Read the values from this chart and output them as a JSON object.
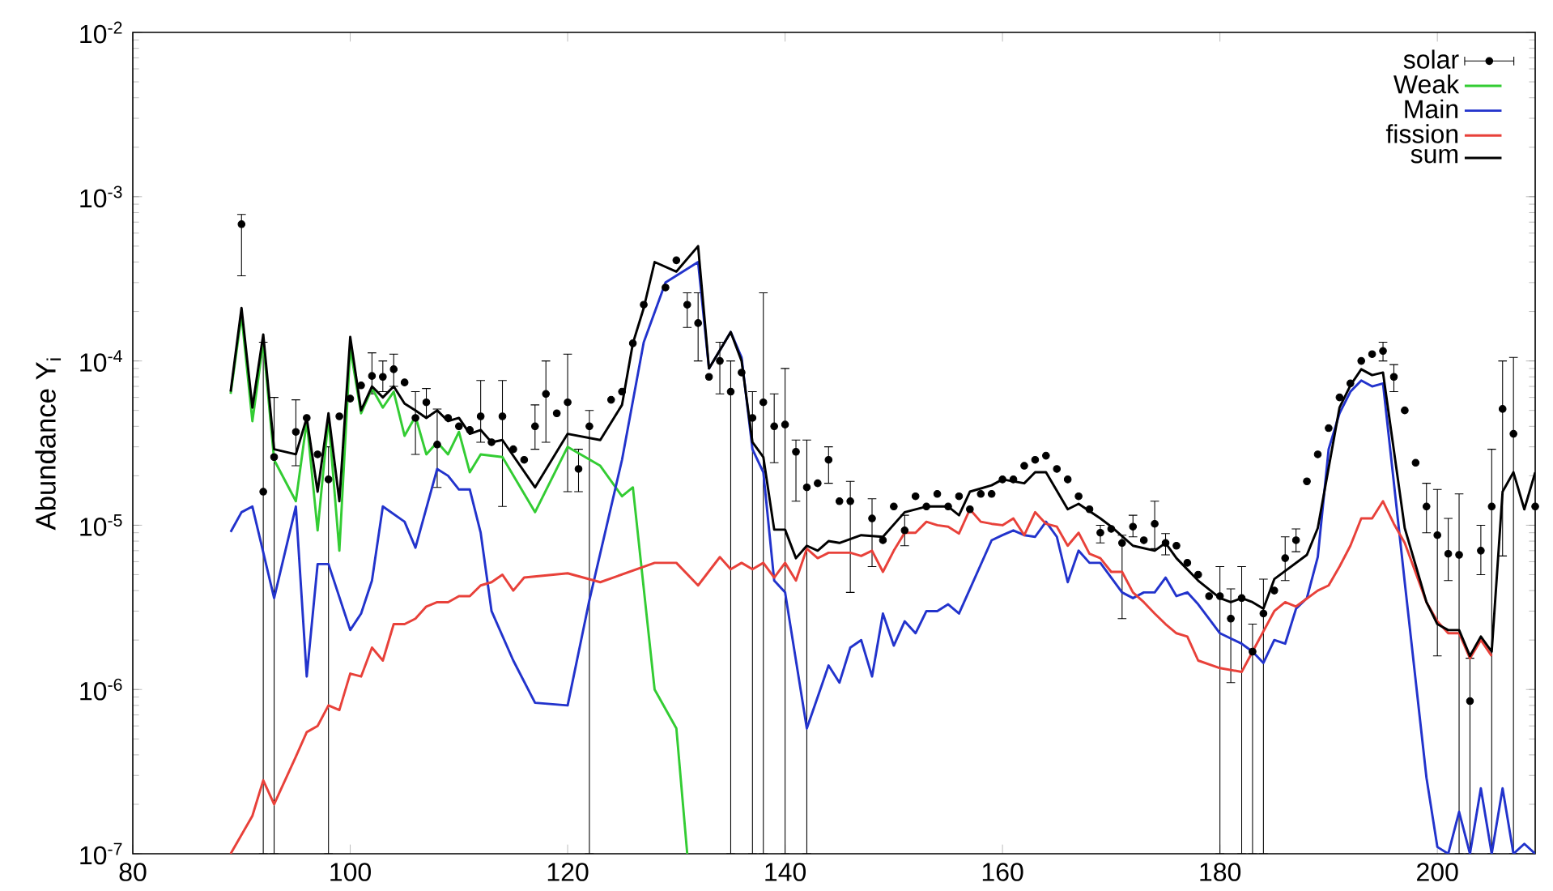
{
  "chart_data": {
    "type": "line",
    "ylabel": "Abundance Y$_{i}$",
    "log": "y",
    "legend": "top right",
    "xlim": [
      80,
      209
    ],
    "xticks": [
      80,
      100,
      120,
      140,
      160,
      180,
      200
    ],
    "ylim": [
      1e-07,
      0.01
    ],
    "yticks": [
      {
        "value": 1e-07,
        "label": "10$^{-7}$"
      },
      {
        "value": 1e-06,
        "label": "10$^{-6}$"
      },
      {
        "value": 1e-05,
        "label": "10$^{-5}$"
      },
      {
        "value": 0.0001,
        "label": "10$^{-4}$"
      },
      {
        "value": 0.001,
        "label": "10$^{-3}$"
      },
      {
        "value": 0.01,
        "label": "10$^{-2}$"
      }
    ],
    "series": [
      {
        "name": "solar",
        "type": "scatter",
        "marker": "circle",
        "color": "#000000",
        "x": [
          90,
          92,
          93,
          95,
          96,
          97,
          98,
          99,
          100,
          101,
          102,
          103,
          104,
          105,
          106,
          107,
          108,
          109,
          110,
          111,
          112,
          113,
          114,
          115,
          116,
          117,
          118,
          119,
          120,
          121,
          122,
          124,
          125,
          126,
          127,
          129,
          130,
          131,
          132,
          133,
          134,
          135,
          136,
          137,
          138,
          139,
          140,
          141,
          142,
          143,
          144,
          145,
          146,
          148,
          149,
          150,
          151,
          152,
          153,
          154,
          155,
          156,
          157,
          158,
          159,
          160,
          161,
          162,
          163,
          164,
          165,
          166,
          167,
          168,
          169,
          170,
          171,
          172,
          173,
          174,
          175,
          176,
          177,
          178,
          179,
          180,
          181,
          182,
          183,
          184,
          185,
          186,
          187,
          188,
          189,
          190,
          191,
          192,
          193,
          194,
          195,
          196,
          197,
          198,
          199,
          200,
          201,
          202,
          203,
          204,
          205,
          206,
          207,
          209
        ],
        "values": [
          0.00068,
          1.6e-05,
          2.6e-05,
          3.7e-05,
          4.5e-05,
          2.7e-05,
          1.9e-05,
          4.6e-05,
          5.9e-05,
          7.1e-05,
          8.1e-05,
          8e-05,
          8.9e-05,
          7.4e-05,
          4.5e-05,
          5.6e-05,
          3.1e-05,
          4.5e-05,
          4e-05,
          3.8e-05,
          4.6e-05,
          3.2e-05,
          4.6e-05,
          2.9e-05,
          2.5e-05,
          4e-05,
          6.3e-05,
          4.8e-05,
          5.6e-05,
          2.2e-05,
          4e-05,
          5.8e-05,
          6.5e-05,
          0.000128,
          0.00022,
          0.00028,
          0.00041,
          0.00022,
          0.00017,
          8e-05,
          0.0001,
          6.5e-05,
          8.5e-05,
          4.5e-05,
          5.6e-05,
          4e-05,
          4.1e-05,
          2.8e-05,
          1.7e-05,
          1.8e-05,
          2.5e-05,
          1.4e-05,
          1.4e-05,
          1.1e-05,
          8.1e-06,
          1.3e-05,
          9.3e-06,
          1.5e-05,
          1.3e-05,
          1.55e-05,
          1.3e-05,
          1.5e-05,
          1.25e-05,
          1.55e-05,
          1.55e-05,
          1.9e-05,
          1.9e-05,
          2.3e-05,
          2.5e-05,
          2.65e-05,
          2.2e-05,
          1.9e-05,
          1.5e-05,
          1.25e-05,
          9e-06,
          9.5e-06,
          7.8e-06,
          9.8e-06,
          8.1e-06,
          1.02e-05,
          7.8e-06,
          7.5e-06,
          5.9e-06,
          5e-06,
          3.7e-06,
          3.7e-06,
          2.7e-06,
          3.6e-06,
          1.7e-06,
          2.9e-06,
          4e-06,
          6.3e-06,
          8.1e-06,
          1.85e-05,
          2.7e-05,
          3.9e-05,
          6e-05,
          7.3e-05,
          0.0001,
          0.00011,
          0.000115,
          8e-05,
          5e-05,
          2.4e-05,
          1.3e-05,
          8.7e-06,
          6.7e-06,
          6.6e-06,
          8.5e-07,
          7e-06,
          1.3e-05,
          5.1e-05,
          3.6e-05,
          1.3e-05
        ],
        "errors": [
          [
            0.00033,
            0.00078
          ],
          [
            1e-07,
            0.00013
          ],
          [
            1e-07,
            6e-05
          ],
          [
            2.3e-05,
            5.8e-05
          ],
          null,
          null,
          [
            1e-07,
            3e-05
          ],
          null,
          null,
          null,
          [
            6.3e-05,
            0.000112
          ],
          [
            6.5e-05,
            0.0001
          ],
          [
            7e-05,
            0.00011
          ],
          null,
          [
            2.7e-05,
            6.5e-05
          ],
          [
            4.6e-05,
            6.8e-05
          ],
          [
            1.7e-05,
            5.1e-05
          ],
          null,
          null,
          null,
          [
            3.2e-05,
            7.6e-05
          ],
          null,
          [
            1.3e-05,
            7.6e-05
          ],
          null,
          null,
          [
            2.9e-05,
            5.4e-05
          ],
          [
            3.2e-05,
            0.0001
          ],
          null,
          [
            1.6e-05,
            0.00011
          ],
          [
            1.6e-05,
            2.9e-05
          ],
          [
            1e-07,
            5e-05
          ],
          null,
          null,
          null,
          null,
          null,
          null,
          [
            0.00016,
            0.00026
          ],
          [
            0.0001,
            0.00026
          ],
          null,
          [
            6.3e-05,
            0.00013
          ],
          [
            1e-07,
            0.0001
          ],
          null,
          [
            1e-07,
            6.5e-05
          ],
          [
            1e-07,
            0.00026
          ],
          [
            2.4e-05,
            6.3e-05
          ],
          [
            1e-07,
            9e-05
          ],
          [
            1.4e-05,
            3.3e-05
          ],
          [
            1e-07,
            3.3e-05
          ],
          null,
          [
            1.8e-05,
            3e-05
          ],
          null,
          [
            3.9e-06,
            1.85e-05
          ],
          [
            5.6e-06,
            1.45e-05
          ],
          null,
          null,
          [
            7.5e-06,
            1.15e-05
          ],
          null,
          null,
          null,
          null,
          null,
          null,
          null,
          null,
          null,
          null,
          null,
          null,
          null,
          null,
          null,
          null,
          null,
          [
            7.8e-06,
            1e-05
          ],
          null,
          [
            2.7e-06,
            8.7e-06
          ],
          [
            8.5e-06,
            1.15e-05
          ],
          null,
          [
            7.2e-06,
            1.4e-05
          ],
          [
            6.6e-06,
            8.9e-06
          ],
          null,
          null,
          null,
          null,
          [
            1e-07,
            5.6e-06
          ],
          [
            1.1e-06,
            4.1e-06
          ],
          [
            1e-07,
            5.6e-06
          ],
          [
            1e-07,
            2.5e-06
          ],
          [
            1e-07,
            4.7e-06
          ],
          null,
          [
            4.6e-06,
            8.5e-06
          ],
          [
            6.9e-06,
            9.5e-06
          ],
          null,
          null,
          null,
          null,
          null,
          null,
          null,
          [
            0.0001,
            0.00013
          ],
          [
            6.5e-05,
            9.5e-05
          ],
          null,
          null,
          [
            9e-06,
            1.8e-05
          ],
          [
            1.6e-06,
            1.65e-05
          ],
          [
            4.6e-06,
            1.1e-05
          ],
          [
            1e-07,
            1.55e-05
          ],
          [
            1e-07,
            1.55e-06
          ],
          [
            5e-06,
            1e-05
          ],
          [
            1e-07,
            2.9e-05
          ],
          [
            6.5e-06,
            0.0001
          ],
          [
            1e-07,
            0.000105
          ],
          null
        ]
      },
      {
        "name": "Weak",
        "color": "#33cc33",
        "x": [
          89,
          90,
          91,
          92,
          93,
          95,
          96,
          97,
          98,
          99,
          100,
          101,
          102,
          103,
          104,
          105,
          106,
          107,
          108,
          109,
          110,
          111,
          112,
          114,
          117,
          120,
          123,
          125,
          126,
          128,
          130,
          131
        ],
        "values": [
          6.3e-05,
          0.00019,
          4.3e-05,
          0.00013,
          2.5e-05,
          1.4e-05,
          4.3e-05,
          9.3e-06,
          4.5e-05,
          7e-06,
          0.00012,
          4.8e-05,
          6.8e-05,
          5.2e-05,
          6.5e-05,
          3.5e-05,
          4.6e-05,
          2.7e-05,
          3.2e-05,
          2.7e-05,
          3.7e-05,
          2.1e-05,
          2.7e-05,
          2.6e-05,
          1.2e-05,
          3e-05,
          2.3e-05,
          1.5e-05,
          1.7e-05,
          1e-06,
          5.8e-07,
          1e-07
        ]
      },
      {
        "name": "Main",
        "color": "#2233cc",
        "x": [
          89,
          90,
          91,
          93,
          95,
          96,
          97,
          98,
          100,
          101,
          102,
          103,
          105,
          106,
          108,
          109,
          110,
          111,
          112,
          113,
          115,
          117,
          120,
          122,
          125,
          127,
          129,
          132,
          133,
          135,
          136,
          137,
          138,
          139,
          140,
          142,
          144,
          145,
          146,
          147,
          148,
          149,
          150,
          151,
          152,
          153,
          154,
          155,
          156,
          159,
          160,
          161,
          162,
          163,
          164,
          165,
          166,
          167,
          168,
          169,
          171,
          172,
          173,
          174,
          175,
          176,
          177,
          178,
          180,
          182,
          183,
          184,
          185,
          186,
          187,
          188,
          189,
          190,
          191,
          192,
          193,
          194,
          195,
          197,
          199,
          200,
          201,
          202,
          203,
          204,
          205,
          206,
          207,
          208,
          209
        ],
        "values": [
          9.1e-06,
          1.2e-05,
          1.3e-05,
          3.6e-06,
          1.3e-05,
          1.2e-06,
          5.8e-06,
          5.8e-06,
          2.3e-06,
          2.9e-06,
          4.6e-06,
          1.3e-05,
          1.05e-05,
          7.3e-06,
          2.2e-05,
          2e-05,
          1.65e-05,
          1.65e-05,
          9e-06,
          3e-06,
          1.5e-06,
          8.3e-07,
          8e-07,
          3.5e-06,
          2.5e-05,
          0.00013,
          0.0003,
          0.0004,
          9e-05,
          0.00015,
          0.000105,
          2.9e-05,
          2.1e-05,
          4.6e-06,
          3.9e-06,
          5.8e-07,
          1.4e-06,
          1.1e-06,
          1.8e-06,
          2e-06,
          1.2e-06,
          2.9e-06,
          1.85e-06,
          2.6e-06,
          2.2e-06,
          3e-06,
          3e-06,
          3.3e-06,
          2.9e-06,
          8.1e-06,
          8.7e-06,
          9.3e-06,
          8.7e-06,
          8.5e-06,
          1.05e-05,
          8.5e-06,
          4.5e-06,
          7e-06,
          5.9e-06,
          5.9e-06,
          3.9e-06,
          3.6e-06,
          3.9e-06,
          3.9e-06,
          4.8e-06,
          3.7e-06,
          3.9e-06,
          3.3e-06,
          2.2e-06,
          1.9e-06,
          1.7e-06,
          1.45e-06,
          2e-06,
          1.9e-06,
          3.1e-06,
          3.6e-06,
          6.4e-06,
          2.9e-05,
          4.8e-05,
          6.5e-05,
          7.6e-05,
          7e-05,
          7.3e-05,
          4.5e-06,
          2.9e-07,
          1.1e-07,
          1e-07,
          1.8e-07,
          1e-07,
          2.5e-07,
          1e-07,
          2.5e-07,
          1e-07,
          1.15e-07,
          1e-07
        ]
      },
      {
        "name": "fission",
        "color": "#e8413a",
        "x": [
          89,
          91,
          92,
          93,
          95,
          96,
          97,
          98,
          99,
          100,
          101,
          102,
          103,
          104,
          105,
          106,
          107,
          108,
          109,
          110,
          111,
          112,
          113,
          114,
          115,
          116,
          120,
          123,
          128,
          130,
          132,
          134,
          135,
          136,
          137,
          138,
          139,
          140,
          141,
          142,
          143,
          144,
          146,
          147,
          148,
          149,
          150,
          151,
          152,
          153,
          154,
          155,
          156,
          157,
          158,
          159,
          160,
          161,
          162,
          163,
          164,
          165,
          166,
          167,
          168,
          169,
          170,
          171,
          172,
          173,
          174,
          175,
          176,
          177,
          178,
          180,
          182,
          183,
          185,
          186,
          187,
          189,
          190,
          191,
          192,
          193,
          194,
          195,
          196,
          197,
          199,
          200,
          201,
          202,
          203,
          204,
          205
        ],
        "values": [
          1e-07,
          1.7e-07,
          2.8e-07,
          2e-07,
          3.9e-07,
          5.5e-07,
          6e-07,
          8e-07,
          7.5e-07,
          1.25e-06,
          1.2e-06,
          1.8e-06,
          1.5e-06,
          2.5e-06,
          2.5e-06,
          2.7e-06,
          3.2e-06,
          3.4e-06,
          3.4e-06,
          3.7e-06,
          3.7e-06,
          4.3e-06,
          4.5e-06,
          5e-06,
          4e-06,
          4.8e-06,
          5.1e-06,
          4.5e-06,
          5.9e-06,
          5.9e-06,
          4.3e-06,
          6.4e-06,
          5.4e-06,
          5.9e-06,
          5.4e-06,
          5.9e-06,
          4.8e-06,
          5.9e-06,
          4.6e-06,
          7.2e-06,
          6.3e-06,
          6.8e-06,
          6.8e-06,
          6.5e-06,
          7e-06,
          5.2e-06,
          7e-06,
          9e-06,
          9e-06,
          1.05e-05,
          1e-05,
          9.8e-06,
          8.9e-06,
          1.25e-05,
          1.05e-05,
          1.02e-05,
          1e-05,
          1.1e-05,
          8.7e-06,
          1.2e-05,
          1.02e-05,
          9.8e-06,
          7.5e-06,
          9e-06,
          6.7e-06,
          6.3e-06,
          5.2e-06,
          5.2e-06,
          3.9e-06,
          3.4e-06,
          2.9e-06,
          2.5e-06,
          2.2e-06,
          2.1e-06,
          1.5e-06,
          1.35e-06,
          1.28e-06,
          1.7e-06,
          3e-06,
          3.4e-06,
          3.2e-06,
          4e-06,
          4.3e-06,
          5.6e-06,
          7.5e-06,
          1.1e-05,
          1.1e-05,
          1.4e-05,
          1.02e-05,
          7.8e-06,
          3.4e-06,
          2.6e-06,
          2.2e-06,
          2.2e-06,
          1.55e-06,
          2e-06,
          1.6e-06
        ]
      },
      {
        "name": "sum",
        "color": "#000000",
        "x": [
          89,
          90,
          91,
          92,
          93,
          95,
          96,
          97,
          98,
          99,
          100,
          101,
          102,
          103,
          104,
          105,
          106,
          107,
          108,
          109,
          110,
          111,
          112,
          113,
          114,
          117,
          120,
          123,
          125,
          126,
          127,
          128,
          130,
          132,
          133,
          135,
          136,
          137,
          138,
          139,
          140,
          141,
          142,
          143,
          144,
          145,
          147,
          149,
          151,
          153,
          155,
          156,
          157,
          159,
          160,
          162,
          163,
          164,
          166,
          167,
          169,
          170,
          172,
          174,
          175,
          176,
          178,
          180,
          181,
          182,
          183,
          184,
          185,
          188,
          189,
          191,
          192,
          193,
          194,
          195,
          197,
          199,
          200,
          201,
          202,
          203,
          204,
          205,
          206,
          207,
          208,
          209
        ],
        "values": [
          6.5e-05,
          0.00021,
          5.2e-05,
          0.000145,
          2.9e-05,
          2.7e-05,
          4.5e-05,
          1.6e-05,
          4.8e-05,
          1.4e-05,
          0.00014,
          5e-05,
          7e-05,
          6e-05,
          7e-05,
          5.5e-05,
          5e-05,
          4.5e-05,
          5e-05,
          4.3e-05,
          4.5e-05,
          3.6e-05,
          3.8e-05,
          3.2e-05,
          3.3e-05,
          1.7e-05,
          3.6e-05,
          3.3e-05,
          5.4e-05,
          0.000128,
          0.00021,
          0.0004,
          0.00035,
          0.0005,
          9e-05,
          0.00015,
          0.0001,
          3.2e-05,
          2.6e-05,
          9.4e-06,
          9.4e-06,
          6.3e-06,
          7.5e-06,
          7e-06,
          8e-06,
          7.8e-06,
          8.7e-06,
          8.5e-06,
          1.2e-05,
          1.3e-05,
          1.3e-05,
          1.15e-05,
          1.6e-05,
          1.75e-05,
          1.9e-05,
          1.8e-05,
          2.1e-05,
          2.1e-05,
          1.25e-05,
          1.35e-05,
          1.1e-05,
          9.8e-06,
          7.5e-06,
          7e-06,
          7.8e-06,
          6.3e-06,
          4.6e-06,
          3.6e-06,
          3.4e-06,
          3.6e-06,
          3.4e-06,
          3.1e-06,
          4.7e-06,
          6.6e-06,
          9.6e-06,
          5.2e-05,
          7.1e-05,
          8.9e-05,
          8.2e-05,
          8.5e-05,
          9.6e-06,
          3.4e-06,
          2.5e-06,
          2.3e-06,
          2.3e-06,
          1.6e-06,
          2.1e-06,
          1.7e-06,
          1.6e-05,
          2.1e-05,
          1.25e-05,
          2.1e-05
        ]
      }
    ]
  }
}
